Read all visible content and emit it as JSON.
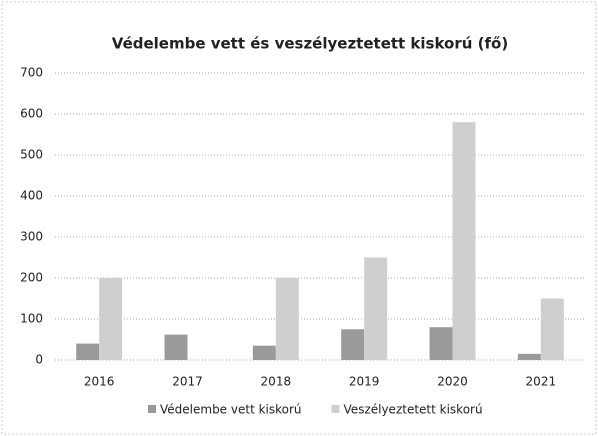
{
  "chart_data": {
    "type": "bar",
    "title": "Védelembe vett és veszélyeztetett kiskorú (fő)",
    "categories": [
      "2016",
      "2017",
      "2018",
      "2019",
      "2020",
      "2021"
    ],
    "series": [
      {
        "name": "Védelembe vett kiskorú",
        "color": "#9a9a9a",
        "values": [
          40,
          62,
          35,
          75,
          80,
          15
        ]
      },
      {
        "name": "Veszélyeztetett kiskorú",
        "color": "#cfcfcf",
        "values": [
          200,
          0,
          200,
          250,
          580,
          150
        ]
      }
    ],
    "ylim": [
      0,
      700
    ],
    "yticks": [
      0,
      100,
      200,
      300,
      400,
      500,
      600,
      700
    ],
    "grid": true,
    "legend": "bottom"
  }
}
